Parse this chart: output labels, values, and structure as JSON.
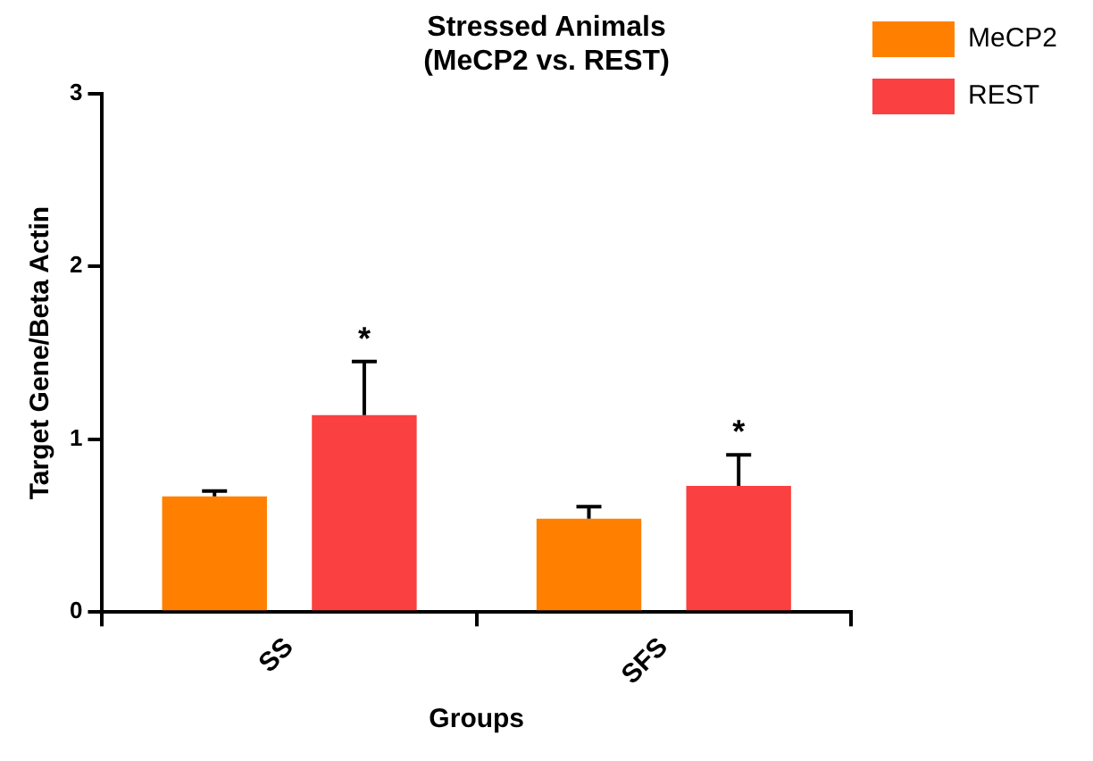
{
  "chart_data": {
    "type": "bar",
    "title": [
      "Stressed Animals",
      "(MeCP2 vs. REST)"
    ],
    "xlabel": "Groups",
    "ylabel": "Target Gene/Beta Actin",
    "categories": [
      "SS",
      "SFS"
    ],
    "series": [
      {
        "name": "MeCP2",
        "color": "#ff8000",
        "values": [
          0.67,
          0.54
        ],
        "errors": [
          [
            0.67,
            0.7
          ],
          [
            0.54,
            0.61
          ]
        ]
      },
      {
        "name": "REST",
        "color": "#fa4040",
        "values": [
          1.14,
          0.73
        ],
        "errors": [
          [
            1.14,
            1.45
          ],
          [
            0.73,
            0.91
          ]
        ]
      }
    ],
    "ylim": [
      0,
      3
    ],
    "yticks": [
      0,
      1,
      2,
      3
    ],
    "grid": false,
    "legend": "top right",
    "annotations": [
      "*",
      "*"
    ]
  }
}
